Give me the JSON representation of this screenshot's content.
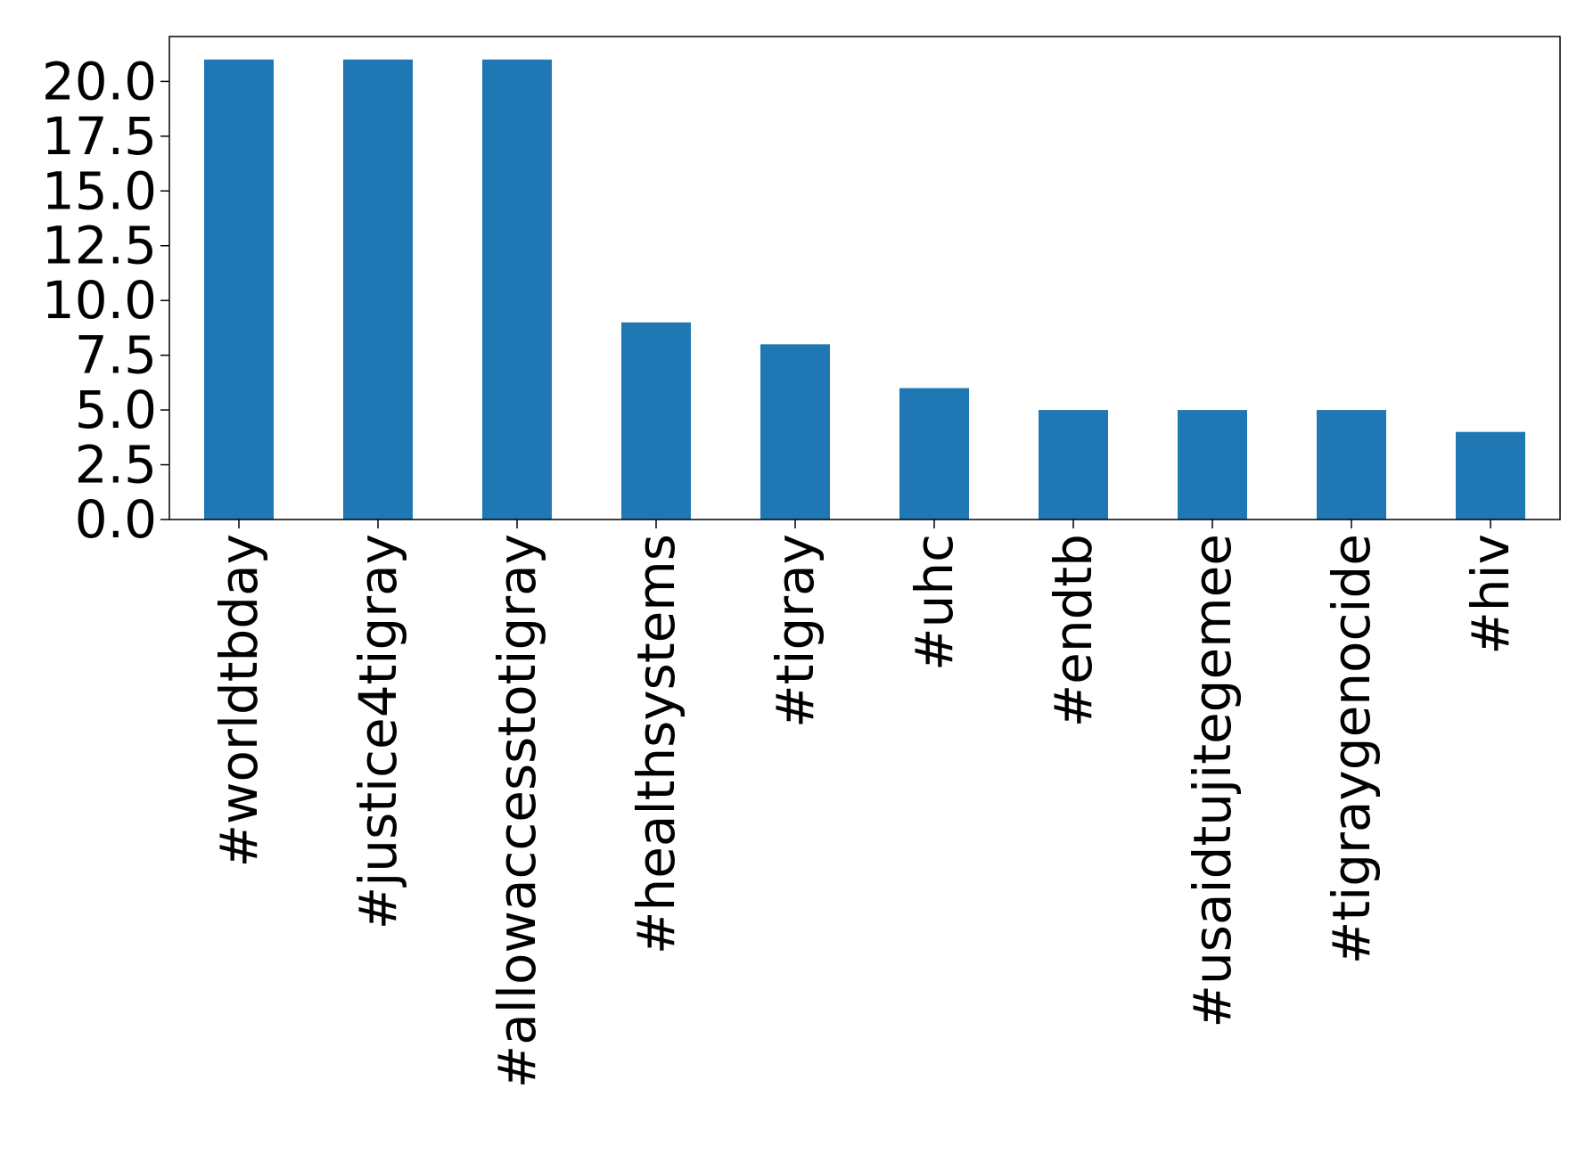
{
  "chart_data": {
    "type": "bar",
    "title": "",
    "xlabel": "",
    "ylabel": "",
    "categories": [
      "#worldtbday",
      "#justice4tigray",
      "#allowaccesstotigray",
      "#healthsystems",
      "#tigray",
      "#uhc",
      "#endtb",
      "#usaidtujitegemee",
      "#tigraygenocide",
      "#hiv"
    ],
    "values": [
      21,
      21,
      21,
      9,
      8,
      6,
      5,
      5,
      5,
      4
    ],
    "ylim": [
      0,
      22.05
    ],
    "yticks": [
      "0.0",
      "2.5",
      "5.0",
      "7.5",
      "10.0",
      "12.5",
      "15.0",
      "17.5",
      "20.0"
    ],
    "grid": false,
    "legend": "none",
    "bar_color": "#1f77b4"
  }
}
